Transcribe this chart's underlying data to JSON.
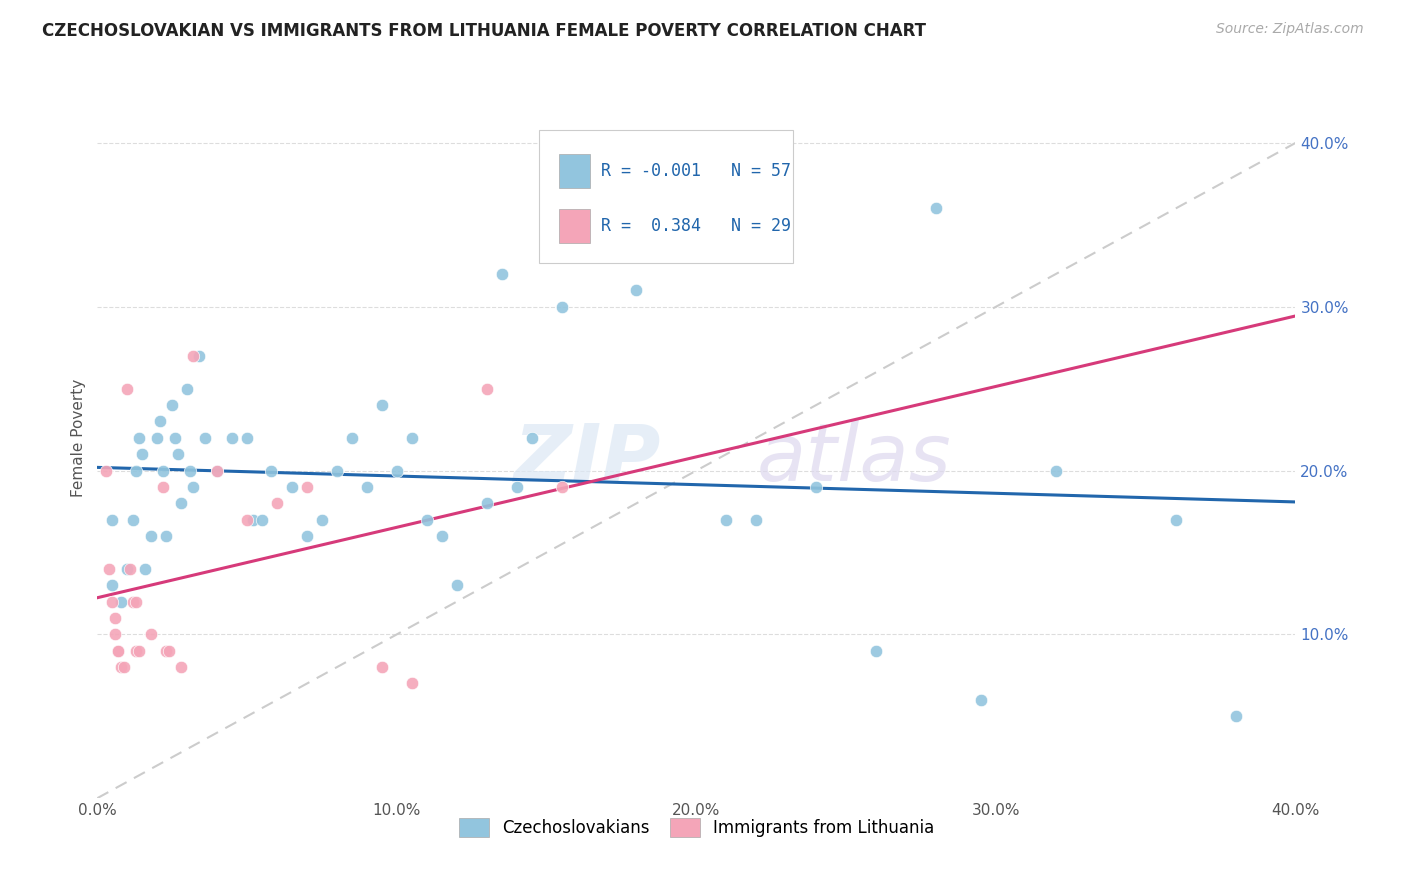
{
  "title": "CZECHOSLOVAKIAN VS IMMIGRANTS FROM LITHUANIA FEMALE POVERTY CORRELATION CHART",
  "source": "Source: ZipAtlas.com",
  "ylabel": "Female Poverty",
  "xlim": [
    0.0,
    0.4
  ],
  "ylim": [
    0.0,
    0.44
  ],
  "xtick_labels": [
    "0.0%",
    "10.0%",
    "20.0%",
    "30.0%",
    "40.0%"
  ],
  "xtick_vals": [
    0.0,
    0.1,
    0.2,
    0.3,
    0.4
  ],
  "ytick_labels": [
    "10.0%",
    "20.0%",
    "30.0%",
    "40.0%"
  ],
  "ytick_vals": [
    0.1,
    0.2,
    0.3,
    0.4
  ],
  "legend_label1": "Czechoslovakians",
  "legend_label2": "Immigrants from Lithuania",
  "R1": "-0.001",
  "N1": "57",
  "R2": "0.384",
  "N2": "29",
  "blue_color": "#92c5de",
  "pink_color": "#f4a5b8",
  "blue_line_color": "#2166ac",
  "pink_line_color": "#d63a7a",
  "diag_line_color": "#cccccc",
  "blue_scatter": [
    [
      0.005,
      0.17
    ],
    [
      0.005,
      0.13
    ],
    [
      0.008,
      0.12
    ],
    [
      0.01,
      0.14
    ],
    [
      0.012,
      0.17
    ],
    [
      0.013,
      0.2
    ],
    [
      0.014,
      0.22
    ],
    [
      0.015,
      0.21
    ],
    [
      0.016,
      0.14
    ],
    [
      0.018,
      0.16
    ],
    [
      0.02,
      0.22
    ],
    [
      0.021,
      0.23
    ],
    [
      0.022,
      0.2
    ],
    [
      0.023,
      0.16
    ],
    [
      0.025,
      0.24
    ],
    [
      0.026,
      0.22
    ],
    [
      0.027,
      0.21
    ],
    [
      0.028,
      0.18
    ],
    [
      0.03,
      0.25
    ],
    [
      0.031,
      0.2
    ],
    [
      0.032,
      0.19
    ],
    [
      0.034,
      0.27
    ],
    [
      0.036,
      0.22
    ],
    [
      0.04,
      0.2
    ],
    [
      0.045,
      0.22
    ],
    [
      0.05,
      0.22
    ],
    [
      0.052,
      0.17
    ],
    [
      0.055,
      0.17
    ],
    [
      0.058,
      0.2
    ],
    [
      0.065,
      0.19
    ],
    [
      0.07,
      0.16
    ],
    [
      0.075,
      0.17
    ],
    [
      0.08,
      0.2
    ],
    [
      0.085,
      0.22
    ],
    [
      0.09,
      0.19
    ],
    [
      0.095,
      0.24
    ],
    [
      0.1,
      0.2
    ],
    [
      0.105,
      0.22
    ],
    [
      0.11,
      0.17
    ],
    [
      0.115,
      0.16
    ],
    [
      0.12,
      0.13
    ],
    [
      0.13,
      0.18
    ],
    [
      0.135,
      0.32
    ],
    [
      0.14,
      0.19
    ],
    [
      0.145,
      0.22
    ],
    [
      0.155,
      0.3
    ],
    [
      0.17,
      0.36
    ],
    [
      0.18,
      0.31
    ],
    [
      0.21,
      0.17
    ],
    [
      0.22,
      0.17
    ],
    [
      0.24,
      0.19
    ],
    [
      0.26,
      0.09
    ],
    [
      0.28,
      0.36
    ],
    [
      0.295,
      0.06
    ],
    [
      0.32,
      0.2
    ],
    [
      0.36,
      0.17
    ],
    [
      0.38,
      0.05
    ]
  ],
  "pink_scatter": [
    [
      0.003,
      0.2
    ],
    [
      0.004,
      0.14
    ],
    [
      0.005,
      0.12
    ],
    [
      0.006,
      0.11
    ],
    [
      0.006,
      0.1
    ],
    [
      0.007,
      0.09
    ],
    [
      0.007,
      0.09
    ],
    [
      0.008,
      0.08
    ],
    [
      0.009,
      0.08
    ],
    [
      0.01,
      0.25
    ],
    [
      0.011,
      0.14
    ],
    [
      0.012,
      0.12
    ],
    [
      0.013,
      0.12
    ],
    [
      0.013,
      0.09
    ],
    [
      0.014,
      0.09
    ],
    [
      0.018,
      0.1
    ],
    [
      0.022,
      0.19
    ],
    [
      0.023,
      0.09
    ],
    [
      0.024,
      0.09
    ],
    [
      0.028,
      0.08
    ],
    [
      0.032,
      0.27
    ],
    [
      0.04,
      0.2
    ],
    [
      0.05,
      0.17
    ],
    [
      0.06,
      0.18
    ],
    [
      0.07,
      0.19
    ],
    [
      0.095,
      0.08
    ],
    [
      0.105,
      0.07
    ],
    [
      0.13,
      0.25
    ],
    [
      0.155,
      0.19
    ]
  ]
}
